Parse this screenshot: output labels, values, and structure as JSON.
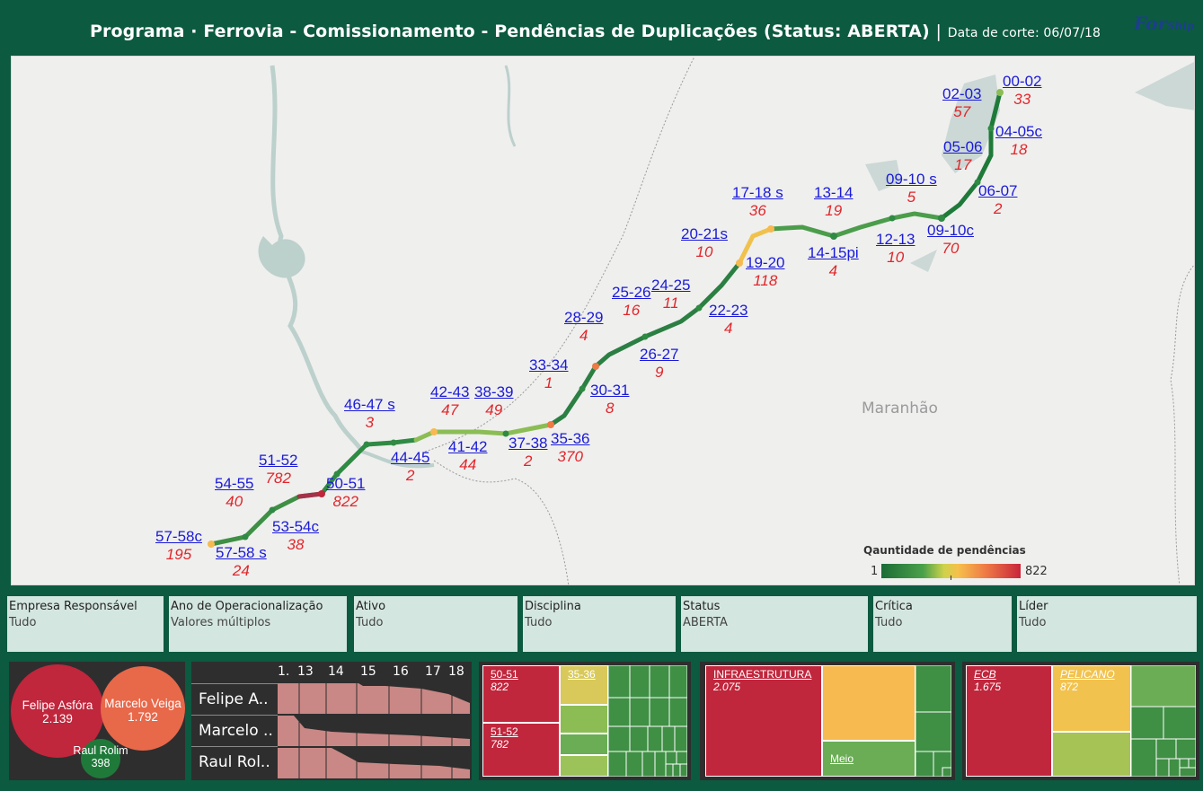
{
  "header": {
    "title_part1": "Programa",
    "title_part2": "· Ferrovia - Comissionamento - Pendências de Duplicações",
    "title_part3": "(Status: ABERTA)",
    "separator": "|",
    "cutoff": "Data de corte: 06/07/18",
    "logo_text": "For",
    "logo_sub": "Ship"
  },
  "map": {
    "state_label": "Maranhão",
    "legend": {
      "title": "Qauntidade de pendências",
      "min": "1",
      "max": "822"
    },
    "segments": [
      {
        "name": "00-02",
        "count": "33"
      },
      {
        "name": "02-03",
        "count": "57"
      },
      {
        "name": "04-05c",
        "count": "18"
      },
      {
        "name": "05-06",
        "count": "17"
      },
      {
        "name": "06-07",
        "count": "2"
      },
      {
        "name": "09-10 s",
        "count": "5"
      },
      {
        "name": "09-10c",
        "count": "70"
      },
      {
        "name": "13-14",
        "count": "19"
      },
      {
        "name": "12-13",
        "count": "10"
      },
      {
        "name": "14-15pi",
        "count": "4"
      },
      {
        "name": "17-18 s",
        "count": "36"
      },
      {
        "name": "20-21s",
        "count": "10"
      },
      {
        "name": "19-20",
        "count": "118"
      },
      {
        "name": "24-25",
        "count": "11"
      },
      {
        "name": "25-26",
        "count": "16"
      },
      {
        "name": "22-23",
        "count": "4"
      },
      {
        "name": "28-29",
        "count": "4"
      },
      {
        "name": "26-27",
        "count": "9"
      },
      {
        "name": "33-34",
        "count": "1"
      },
      {
        "name": "30-31",
        "count": "8"
      },
      {
        "name": "42-43",
        "count": "47"
      },
      {
        "name": "38-39",
        "count": "49"
      },
      {
        "name": "35-36",
        "count": "370"
      },
      {
        "name": "37-38",
        "count": "2"
      },
      {
        "name": "41-42",
        "count": "44"
      },
      {
        "name": "46-47 s",
        "count": "3"
      },
      {
        "name": "44-45",
        "count": "2"
      },
      {
        "name": "51-52",
        "count": "782"
      },
      {
        "name": "50-51",
        "count": "822"
      },
      {
        "name": "54-55",
        "count": "40"
      },
      {
        "name": "53-54c",
        "count": "38"
      },
      {
        "name": "57-58c",
        "count": "195"
      },
      {
        "name": "57-58 s",
        "count": "24"
      }
    ]
  },
  "filters": [
    {
      "label": "Empresa Responsável",
      "value": "Tudo"
    },
    {
      "label": "Ano de Operacionalização",
      "value": "Valores múltiplos"
    },
    {
      "label": "Ativo",
      "value": "Tudo"
    },
    {
      "label": "Disciplina",
      "value": "Tudo"
    },
    {
      "label": "Status",
      "value": "ABERTA"
    },
    {
      "label": "Crítica",
      "value": "Tudo"
    },
    {
      "label": "Líder",
      "value": "Tudo"
    }
  ],
  "bubbles": [
    {
      "name": "Felipe Asfóra",
      "value": "2.139",
      "color": "#c0263c"
    },
    {
      "name": "Marcelo Veiga",
      "value": "1.792",
      "color": "#e8684a"
    },
    {
      "name": "Raul Rolim",
      "value": "398",
      "color": "#1f7a3a"
    }
  ],
  "timeline": {
    "ticks": [
      "1.",
      "13",
      "14",
      "15",
      "16",
      "17",
      "18"
    ],
    "rows": [
      "Felipe A..",
      "Marcelo ..",
      "Raul Rol.."
    ],
    "fill_color": "#c98885"
  },
  "treemap_segments": {
    "items": [
      {
        "label": "50-51",
        "value": "822"
      },
      {
        "label": "51-52",
        "value": "782"
      },
      {
        "label": "35-36",
        "value": ""
      }
    ]
  },
  "treemap_discipline": {
    "items": [
      {
        "label": "INFRAESTRUTURA",
        "value": "2.075"
      },
      {
        "label": "Meio",
        "value": ""
      }
    ]
  },
  "treemap_company": {
    "items": [
      {
        "label": "ECB",
        "value": "1.675"
      },
      {
        "label": "PELICANO",
        "value": "872"
      }
    ]
  },
  "colors": {
    "dark_green": "#0c5a40",
    "red": "#c0263c",
    "orange": "#f6ba50",
    "mid_green": "#4aa14a",
    "filter_bg": "#d3e6df"
  }
}
